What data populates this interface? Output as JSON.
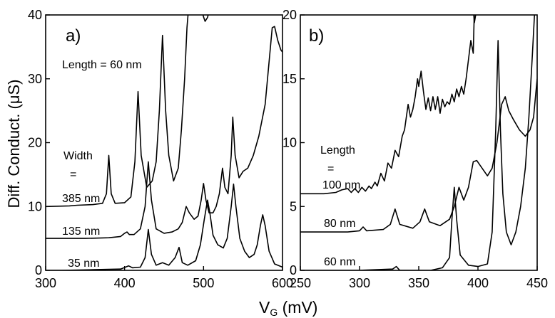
{
  "figure": {
    "xlabel_main": "V",
    "xlabel_sub": "G",
    "xlabel_unit": " (mV)",
    "ylabel": "Diff. Conduct. (μS)"
  },
  "chart_data": [
    {
      "type": "line",
      "panel_label": "a)",
      "xlim": [
        300,
        600
      ],
      "ylim": [
        0,
        40
      ],
      "xticks": [
        300,
        400,
        500,
        600
      ],
      "yticks": [
        0,
        10,
        20,
        30,
        40
      ],
      "xlabel": "VG (mV)",
      "ylabel": "Diff. Conduct. (μS)",
      "annotations": {
        "length": "Length = 60 nm",
        "width_title": "Width",
        "width_eq": "="
      },
      "series": [
        {
          "name": "385 nm",
          "offset": 10,
          "points": [
            [
              300,
              10
            ],
            [
              330,
              10.1
            ],
            [
              340,
              10.2
            ],
            [
              360,
              10.3
            ],
            [
              372,
              10.5
            ],
            [
              377,
              12
            ],
            [
              380,
              18
            ],
            [
              383,
              12
            ],
            [
              388,
              10.5
            ],
            [
              400,
              10.6
            ],
            [
              408,
              11.5
            ],
            [
              413,
              17
            ],
            [
              417,
              28
            ],
            [
              421,
              18
            ],
            [
              428,
              13
            ],
            [
              435,
              14
            ],
            [
              440,
              17
            ],
            [
              444,
              25
            ],
            [
              448,
              36.8
            ],
            [
              452,
              25
            ],
            [
              456,
              18
            ],
            [
              462,
              14
            ],
            [
              468,
              16
            ],
            [
              472,
              22
            ],
            [
              476,
              30
            ],
            [
              479,
              38
            ],
            [
              481,
              41
            ]
          ]
        },
        {
          "name": "135 nm",
          "offset": 5,
          "points": [
            [
              300,
              5
            ],
            [
              350,
              5
            ],
            [
              380,
              5.1
            ],
            [
              395,
              5.3
            ],
            [
              400,
              5.8
            ],
            [
              403,
              6
            ],
            [
              406,
              5.6
            ],
            [
              412,
              5.6
            ],
            [
              420,
              6.5
            ],
            [
              426,
              10
            ],
            [
              430,
              17
            ],
            [
              434,
              11
            ],
            [
              440,
              6.5
            ],
            [
              450,
              5.8
            ],
            [
              460,
              6
            ],
            [
              468,
              6.5
            ],
            [
              473,
              7.5
            ],
            [
              478,
              10
            ],
            [
              482,
              9
            ],
            [
              488,
              8
            ],
            [
              493,
              8.5
            ],
            [
              497,
              11
            ],
            [
              500,
              13.6
            ],
            [
              503,
              11
            ],
            [
              507,
              9
            ],
            [
              512,
              9
            ],
            [
              516,
              10
            ],
            [
              520,
              12
            ],
            [
              524,
              16
            ],
            [
              527,
              13
            ],
            [
              531,
              12
            ],
            [
              535,
              18
            ],
            [
              537,
              24
            ],
            [
              540,
              18
            ],
            [
              545,
              14.5
            ],
            [
              550,
              15.5
            ],
            [
              556,
              16
            ],
            [
              563,
              18
            ],
            [
              570,
              21
            ],
            [
              578,
              26
            ],
            [
              584,
              34
            ],
            [
              587,
              38
            ],
            [
              590,
              38.2
            ],
            [
              594,
              36
            ],
            [
              598,
              34.5
            ],
            [
              600,
              34.2
            ]
          ]
        },
        {
          "name": "35 nm",
          "offset": 0,
          "points": [
            [
              300,
              0
            ],
            [
              320,
              0
            ],
            [
              360,
              0.1
            ],
            [
              395,
              0.2
            ],
            [
              405,
              0.7
            ],
            [
              410,
              0.4
            ],
            [
              420,
              0.5
            ],
            [
              426,
              2
            ],
            [
              430,
              6.4
            ],
            [
              434,
              2.5
            ],
            [
              440,
              0.8
            ],
            [
              448,
              1.2
            ],
            [
              456,
              0.8
            ],
            [
              464,
              2
            ],
            [
              469,
              3.6
            ],
            [
              473,
              1.2
            ],
            [
              480,
              0.8
            ],
            [
              490,
              1.5
            ],
            [
              496,
              4
            ],
            [
              501,
              8
            ],
            [
              505,
              11
            ],
            [
              508,
              9
            ],
            [
              512,
              5.5
            ],
            [
              518,
              4
            ],
            [
              525,
              3.5
            ],
            [
              530,
              5
            ],
            [
              535,
              10
            ],
            [
              538,
              13.5
            ],
            [
              541,
              10
            ],
            [
              546,
              5
            ],
            [
              552,
              3
            ],
            [
              558,
              2
            ],
            [
              564,
              2.5
            ],
            [
              568,
              4
            ],
            [
              572,
              7
            ],
            [
              575,
              8.7
            ],
            [
              578,
              7
            ],
            [
              583,
              3
            ],
            [
              590,
              1
            ],
            [
              600,
              0.5
            ]
          ]
        }
      ],
      "extra_lines": [
        {
          "name": "top-arc",
          "points": [
            [
              497,
              41
            ],
            [
              500,
              39.7
            ],
            [
              502,
              39
            ],
            [
              505,
              39.6
            ],
            [
              508,
              41
            ]
          ]
        }
      ]
    },
    {
      "type": "line",
      "panel_label": "b)",
      "xlim": [
        250,
        450
      ],
      "ylim": [
        0,
        20
      ],
      "xticks": [
        250,
        300,
        350,
        400,
        450
      ],
      "yticks": [
        0,
        5,
        10,
        15,
        20
      ],
      "xlabel": "VG (mV)",
      "ylabel": "Diff. Conduct. (μS)",
      "annotations": {
        "length_title": "Length",
        "length_eq": "="
      },
      "series": [
        {
          "name": "100 nm",
          "offset": 6,
          "points": [
            [
              250,
              6
            ],
            [
              270,
              6
            ],
            [
              280,
              6.1
            ],
            [
              285,
              6.3
            ],
            [
              290,
              6.4
            ],
            [
              293,
              6.1
            ],
            [
              296,
              6.4
            ],
            [
              299,
              6.1
            ],
            [
              302,
              6.5
            ],
            [
              305,
              6.2
            ],
            [
              308,
              6.6
            ],
            [
              310,
              6.4
            ],
            [
              313,
              6.9
            ],
            [
              315,
              6.6
            ],
            [
              318,
              7.6
            ],
            [
              321,
              7
            ],
            [
              324,
              8.4
            ],
            [
              327,
              8
            ],
            [
              330,
              9.4
            ],
            [
              333,
              8.9
            ],
            [
              336,
              10.5
            ],
            [
              338,
              11
            ],
            [
              341,
              13
            ],
            [
              343,
              12
            ],
            [
              345,
              12.6
            ],
            [
              347,
              13.6
            ],
            [
              349,
              15
            ],
            [
              350,
              14.4
            ],
            [
              352,
              15.6
            ],
            [
              354,
              14
            ],
            [
              356,
              12.6
            ],
            [
              358,
              13.5
            ],
            [
              360,
              12.5
            ],
            [
              362,
              13.6
            ],
            [
              364,
              12.6
            ],
            [
              366,
              13.6
            ],
            [
              368,
              12.3
            ],
            [
              370,
              13.4
            ],
            [
              372,
              12.8
            ],
            [
              374,
              13.2
            ],
            [
              376,
              13
            ],
            [
              378,
              13.8
            ],
            [
              380,
              13.2
            ],
            [
              382,
              14.2
            ],
            [
              384,
              13.6
            ],
            [
              386,
              14.4
            ],
            [
              388,
              13.8
            ],
            [
              390,
              15
            ],
            [
              392,
              16.5
            ],
            [
              394,
              18
            ],
            [
              396,
              17
            ],
            [
              397,
              20.5
            ]
          ]
        },
        {
          "name": "80 nm",
          "offset": 3,
          "points": [
            [
              250,
              3
            ],
            [
              290,
              3
            ],
            [
              300,
              3.1
            ],
            [
              303,
              3.4
            ],
            [
              306,
              3.1
            ],
            [
              320,
              3.2
            ],
            [
              326,
              3.6
            ],
            [
              330,
              4.8
            ],
            [
              334,
              3.6
            ],
            [
              345,
              3.3
            ],
            [
              351,
              3.8
            ],
            [
              355,
              4.8
            ],
            [
              359,
              3.8
            ],
            [
              368,
              3.5
            ],
            [
              376,
              4
            ],
            [
              380,
              5
            ],
            [
              384,
              6.5
            ],
            [
              388,
              5.5
            ],
            [
              392,
              6.5
            ],
            [
              396,
              8.5
            ],
            [
              399,
              8.6
            ],
            [
              402,
              8.2
            ],
            [
              408,
              7.4
            ],
            [
              412,
              8
            ],
            [
              416,
              10
            ],
            [
              420,
              13
            ],
            [
              423,
              13.6
            ],
            [
              426,
              12.5
            ],
            [
              430,
              11.8
            ],
            [
              435,
              11
            ],
            [
              440,
              10.5
            ],
            [
              444,
              11
            ],
            [
              447,
              12
            ],
            [
              449,
              14
            ],
            [
              450,
              15
            ]
          ]
        },
        {
          "name": "60 nm",
          "offset": 0,
          "points": [
            [
              250,
              0
            ],
            [
              300,
              0
            ],
            [
              328,
              0.1
            ],
            [
              331,
              0.3
            ],
            [
              334,
              0
            ],
            [
              360,
              0
            ],
            [
              370,
              0.2
            ],
            [
              376,
              1
            ],
            [
              378,
              4
            ],
            [
              380,
              6.5
            ],
            [
              382,
              4
            ],
            [
              385,
              1.2
            ],
            [
              392,
              0.4
            ],
            [
              400,
              0.3
            ],
            [
              408,
              0.5
            ],
            [
              412,
              3
            ],
            [
              415,
              11
            ],
            [
              417,
              18
            ],
            [
              419,
              11
            ],
            [
              421,
              6
            ],
            [
              424,
              3
            ],
            [
              428,
              2
            ],
            [
              432,
              3
            ],
            [
              436,
              5
            ],
            [
              440,
              8
            ],
            [
              443,
              12
            ],
            [
              446,
              17
            ],
            [
              448,
              20.5
            ]
          ]
        }
      ],
      "extra_lines": [
        {
          "name": "top-tail",
          "points": [
            [
              396,
              20.5
            ],
            [
              397,
              19.4
            ],
            [
              399,
              20.5
            ]
          ]
        }
      ]
    }
  ]
}
